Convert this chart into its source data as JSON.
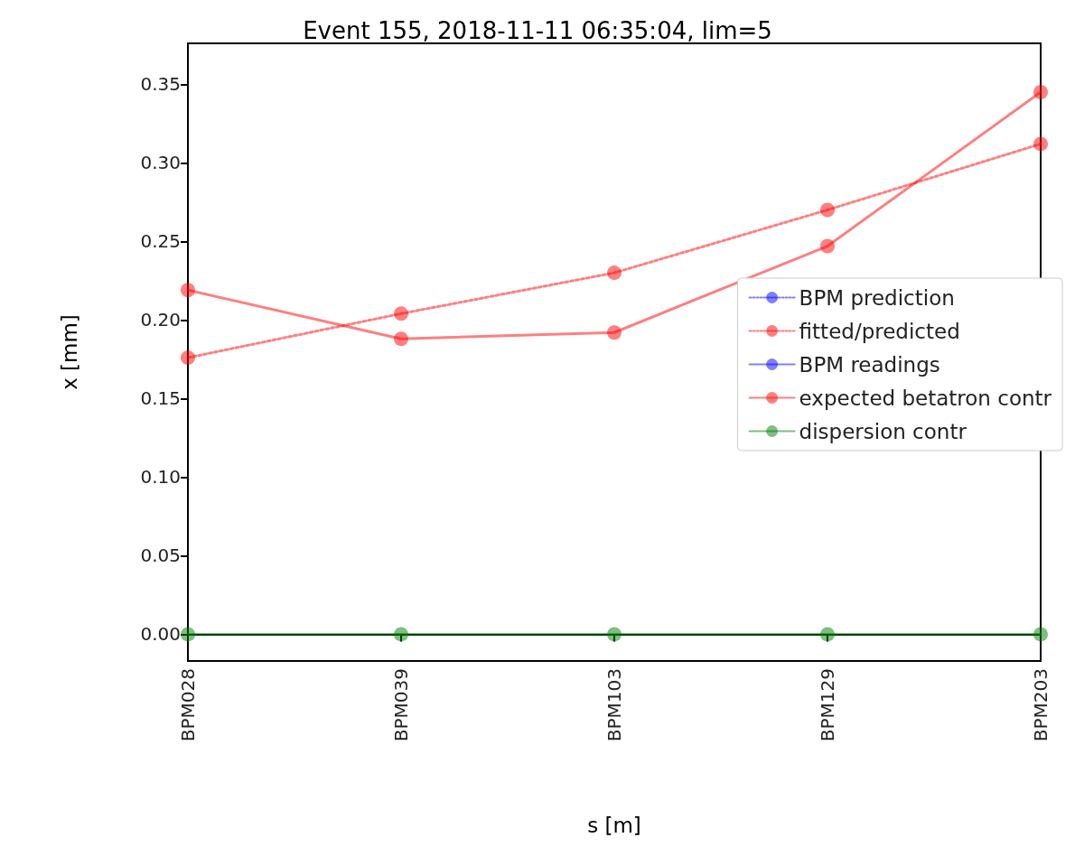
{
  "chart_data": {
    "type": "line",
    "title": "Event 155, 2018-11-11 06:35:04, lim=5",
    "xlabel": "s [m]",
    "ylabel": "x [mm]",
    "categories": [
      "BPM028",
      "BPM039",
      "BPM103",
      "BPM129",
      "BPM203"
    ],
    "ylim": [
      -0.017,
      0.376
    ],
    "yticks": [
      {
        "value": 0,
        "label": "0.00"
      },
      {
        "value": 0.05,
        "label": "0.05"
      },
      {
        "value": 0.1,
        "label": "0.10"
      },
      {
        "value": 0.15,
        "label": "0.15"
      },
      {
        "value": 0.2,
        "label": "0.20"
      },
      {
        "value": 0.25,
        "label": "0.25"
      },
      {
        "value": 0.3,
        "label": "0.30"
      },
      {
        "value": 0.35,
        "label": "0.35"
      }
    ],
    "marker": "circle",
    "legend": "right",
    "series": [
      {
        "name": "BPM prediction",
        "color": "#0000ff",
        "line_style": "dotted",
        "values": [
          null,
          null,
          null,
          null,
          null
        ]
      },
      {
        "name": "fitted/predicted",
        "color": "#ff0000",
        "line_style": "dotted",
        "values": [
          0.176,
          0.204,
          0.23,
          0.27,
          0.312
        ]
      },
      {
        "name": "BPM readings",
        "color": "#0000ff",
        "line_style": "solid",
        "values": [
          null,
          null,
          null,
          null,
          null
        ]
      },
      {
        "name": "expected betatron contr",
        "color": "#ff0000",
        "line_style": "solid",
        "values": [
          0.219,
          0.188,
          0.192,
          0.247,
          0.345
        ]
      },
      {
        "name": "dispersion contr",
        "color": "#008000",
        "line_style": "solid",
        "values": [
          0,
          0,
          0,
          0,
          0
        ]
      }
    ]
  }
}
